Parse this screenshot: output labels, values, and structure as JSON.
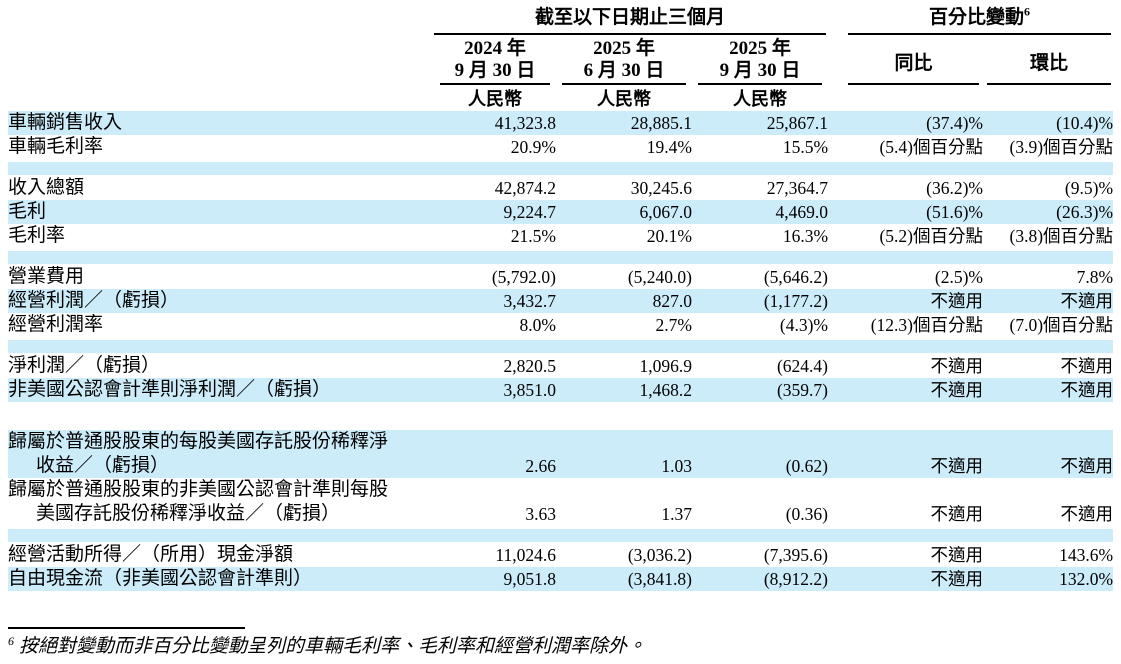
{
  "colors": {
    "stripe": "#cdecfa",
    "text": "#000000"
  },
  "table": {
    "group_header_period": "截至以下日期止三個月",
    "group_header_change": "百分比變動",
    "group_header_change_marker": "6",
    "columns": [
      {
        "line1": "2024 年",
        "line2": "9 月 30 日",
        "currency": "人民幣"
      },
      {
        "line1": "2025 年",
        "line2": "6 月 30 日",
        "currency": "人民幣"
      },
      {
        "line1": "2025 年",
        "line2": "9 月 30 日",
        "currency": "人民幣"
      },
      {
        "label": "同比"
      },
      {
        "label": "環比"
      }
    ],
    "rows": [
      {
        "type": "data",
        "shaded": true,
        "label": "車輛銷售收入",
        "values": [
          "41,323.8",
          "28,885.1",
          "25,867.1",
          "(37.4)%",
          "(10.4)%"
        ]
      },
      {
        "type": "data",
        "shaded": false,
        "label": "車輛毛利率",
        "values": [
          "20.9%",
          "19.4%",
          "15.5%",
          "(5.4)個百分點",
          "(3.9)個百分點"
        ]
      },
      {
        "type": "spacer",
        "shaded": true
      },
      {
        "type": "data",
        "shaded": false,
        "label": "收入總額",
        "values": [
          "42,874.2",
          "30,245.6",
          "27,364.7",
          "(36.2)%",
          "(9.5)%"
        ]
      },
      {
        "type": "data",
        "shaded": true,
        "label": "毛利",
        "values": [
          "9,224.7",
          "6,067.0",
          "4,469.0",
          "(51.6)%",
          "(26.3)%"
        ]
      },
      {
        "type": "data",
        "shaded": false,
        "label": "毛利率",
        "values": [
          "21.5%",
          "20.1%",
          "16.3%",
          "(5.2)個百分點",
          "(3.8)個百分點"
        ]
      },
      {
        "type": "spacer",
        "shaded": true
      },
      {
        "type": "data",
        "shaded": false,
        "label": "營業費用",
        "values": [
          "(5,792.0)",
          "(5,240.0)",
          "(5,646.2)",
          "(2.5)%",
          "7.8%"
        ]
      },
      {
        "type": "data",
        "shaded": true,
        "label": "經營利潤／（虧損）",
        "values": [
          "3,432.7",
          "827.0",
          "(1,177.2)",
          "不適用",
          "不適用"
        ]
      },
      {
        "type": "data",
        "shaded": false,
        "label": "經營利潤率",
        "values": [
          "8.0%",
          "2.7%",
          "(4.3)%",
          "(12.3)個百分點",
          "(7.0)個百分點"
        ]
      },
      {
        "type": "spacer",
        "shaded": true
      },
      {
        "type": "data",
        "shaded": false,
        "label": "淨利潤／（虧損）",
        "values": [
          "2,820.5",
          "1,096.9",
          "(624.4)",
          "不適用",
          "不適用"
        ]
      },
      {
        "type": "data",
        "shaded": true,
        "label": "非美國公認會計準則淨利潤／（虧損）",
        "values": [
          "3,851.0",
          "1,468.2",
          "(359.7)",
          "不適用",
          "不適用"
        ]
      },
      {
        "type": "spacer",
        "shaded": false
      },
      {
        "type": "data",
        "shaded": true,
        "label": "歸屬於普通股股東的每股美國存託股份稀釋淨",
        "label2": "收益／（虧損）",
        "values": [
          "2.66",
          "1.03",
          "(0.62)",
          "不適用",
          "不適用"
        ]
      },
      {
        "type": "data",
        "shaded": false,
        "label": "歸屬於普通股股東的非美國公認會計準則每股",
        "label2": "美國存託股份稀釋淨收益／（虧損）",
        "values": [
          "3.63",
          "1.37",
          "(0.36)",
          "不適用",
          "不適用"
        ]
      },
      {
        "type": "spacer",
        "shaded": true
      },
      {
        "type": "data",
        "shaded": false,
        "label": "經營活動所得／（所用）現金淨額",
        "values": [
          "11,024.6",
          "(3,036.2)",
          "(7,395.6)",
          "不適用",
          "143.6%"
        ]
      },
      {
        "type": "data",
        "shaded": true,
        "label": "自由現金流（非美國公認會計準則）",
        "values": [
          "9,051.8",
          "(3,841.8)",
          "(8,912.2)",
          "不適用",
          "132.0%"
        ]
      }
    ]
  },
  "footnote": {
    "marker": "6",
    "text": "按絕對變動而非百分比變動呈列的車輛毛利率、毛利率和經營利潤率除外。"
  }
}
